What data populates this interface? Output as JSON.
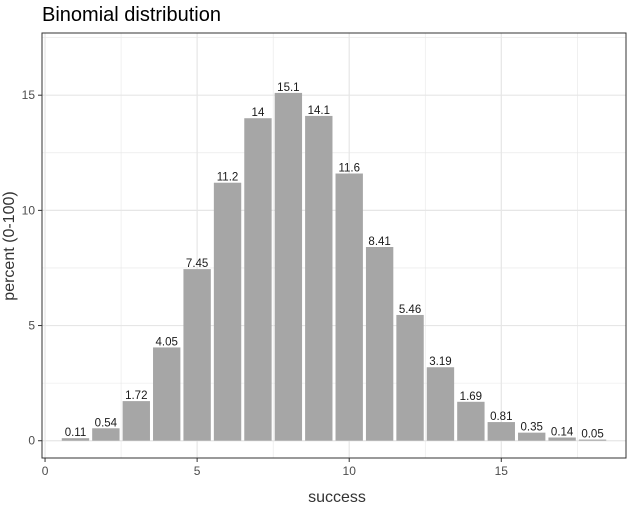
{
  "chart_data": {
    "type": "bar",
    "title": "Binomial distribution",
    "xlabel": "success",
    "ylabel": "percent (0-100)",
    "x": [
      1,
      2,
      3,
      4,
      5,
      6,
      7,
      8,
      9,
      10,
      11,
      12,
      13,
      14,
      15,
      16,
      17,
      18
    ],
    "values": [
      0.11,
      0.54,
      1.72,
      4.05,
      7.45,
      11.2,
      14,
      15.1,
      14.1,
      11.6,
      8.41,
      5.46,
      3.19,
      1.69,
      0.81,
      0.35,
      0.14,
      0.05
    ],
    "labels": [
      "0.11",
      "0.54",
      "1.72",
      "4.05",
      "7.45",
      "11.2",
      "14",
      "15.1",
      "14.1",
      "11.6",
      "8.41",
      "5.46",
      "3.19",
      "1.69",
      "0.81",
      "0.35",
      "0.14",
      "0.05"
    ],
    "xlim": [
      -0.1,
      19.1
    ],
    "ylim": [
      -0.75,
      17.7
    ],
    "x_ticks": [
      0,
      5,
      10,
      15
    ],
    "x_tick_labels": [
      "0",
      "5",
      "10",
      "15"
    ],
    "y_ticks": [
      0,
      5,
      10,
      15
    ],
    "y_tick_labels": [
      "0",
      "5",
      "10",
      "15"
    ],
    "grid": true,
    "bar_color": "#a6a6a6",
    "grid_color": "#e6e6e6",
    "panel_border_color": "#333333"
  }
}
